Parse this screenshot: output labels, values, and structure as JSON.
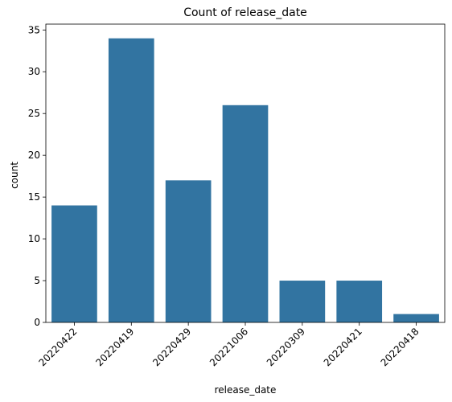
{
  "chart_data": {
    "type": "bar",
    "title": "Count of release_date",
    "xlabel": "release_date",
    "ylabel": "count",
    "categories": [
      "20220422",
      "20220419",
      "20220429",
      "20221006",
      "20220309",
      "20220421",
      "20220418"
    ],
    "values": [
      14,
      34,
      17,
      26,
      5,
      5,
      1
    ],
    "ylim": [
      0,
      35.7
    ],
    "yticks": [
      0,
      5,
      10,
      15,
      20,
      25,
      30,
      35
    ],
    "bar_color": "#3274a1",
    "grid": false
  }
}
